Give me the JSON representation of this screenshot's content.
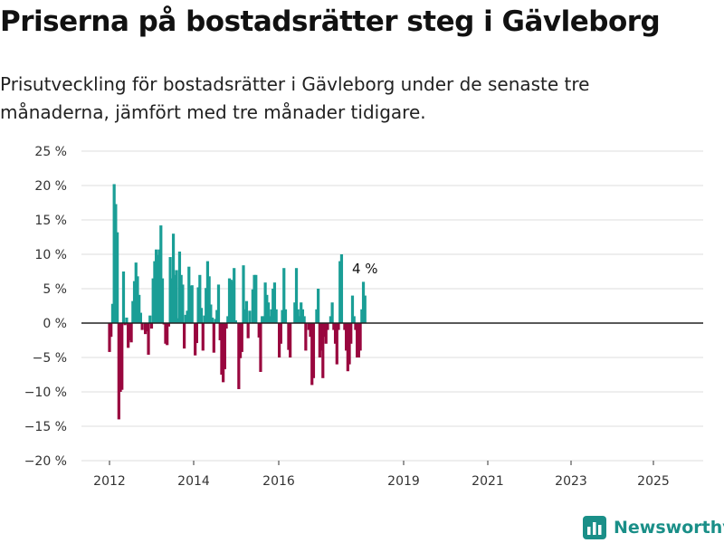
{
  "title": "Priserna på bostadsrätter steg i Gävleborg",
  "subtitle": "Prisutveckling för bostadsrätter i Gävleborg under de senaste tre månaderna, jämfört med tre månader tidigare.",
  "brand": "Newsworthy",
  "colors": {
    "positive": "#1a9e96",
    "negative": "#99073e",
    "grid": "#dddddd",
    "zero": "#222222",
    "brand": "#1a8f88"
  },
  "chart_data": {
    "type": "bar",
    "title": "",
    "xlabel": "",
    "ylabel": "",
    "ylim": [
      -20,
      25
    ],
    "yticks": [
      -20,
      -15,
      -10,
      -5,
      0,
      5,
      10,
      15,
      20,
      25
    ],
    "ytick_labels": [
      "−20 %",
      "−15 %",
      "−10 %",
      "−5 %",
      "0 %",
      "5 %",
      "10 %",
      "15 %",
      "20 %",
      "25 %"
    ],
    "xticks": [
      "2012",
      "2014",
      "2016",
      "2019",
      "2021",
      "2023",
      "2025"
    ],
    "annotation": "4 %",
    "grid": true,
    "values": [
      -4.2,
      -2,
      2.8,
      20.2,
      17.3,
      13.2,
      -14,
      -10,
      -9.7,
      7.5,
      -0.3,
      0.8,
      -3.6,
      -2.5,
      -2.8,
      3.2,
      6.1,
      8.8,
      6.8,
      4.1,
      1.5,
      -1,
      0,
      -1.6,
      -1.2,
      -4.6,
      1.1,
      -0.8,
      6.5,
      9,
      10.7,
      9.9,
      10.7,
      14.2,
      6.5,
      -0.2,
      -3,
      -3.2,
      -0.5,
      9.6,
      6.5,
      13,
      7,
      7.7,
      0.7,
      10.4,
      7,
      5.6,
      -3.7,
      1.2,
      1.8,
      8.2,
      5.4,
      5.5,
      0,
      -4.7,
      -2.9,
      5.2,
      7,
      2.2,
      -4,
      1.1,
      5.1,
      9,
      6.8,
      2.7,
      0.8,
      -4.3,
      0.6,
      1.9,
      5.6,
      -2.5,
      -7.5,
      -8.6,
      -6.7,
      -0.8,
      1,
      6.5,
      6.3,
      6.1,
      8,
      0.4,
      0,
      -9.6,
      -5.1,
      -4.2,
      8.4,
      2,
      3.2,
      -2.2,
      1.8,
      0,
      4.9,
      7,
      7,
      0,
      -2.1,
      -7.1,
      1,
      1,
      5.9,
      4.1,
      3,
      1,
      2,
      5,
      5.9,
      2,
      0,
      -5,
      -3,
      1.9,
      8,
      2,
      0,
      -3.9,
      -5,
      0,
      0,
      3,
      8,
      2,
      1,
      3,
      2,
      1,
      -4,
      0,
      -1,
      -2,
      -9,
      -8,
      0,
      2,
      5,
      -5,
      -4,
      -8,
      -2,
      -3,
      -1,
      0,
      1,
      3,
      -1,
      -3,
      -6,
      -1,
      9,
      10,
      0,
      -1,
      -4,
      -7,
      -6,
      -3,
      4,
      1,
      -1,
      -5,
      -5,
      -4,
      2,
      6,
      4
    ]
  }
}
